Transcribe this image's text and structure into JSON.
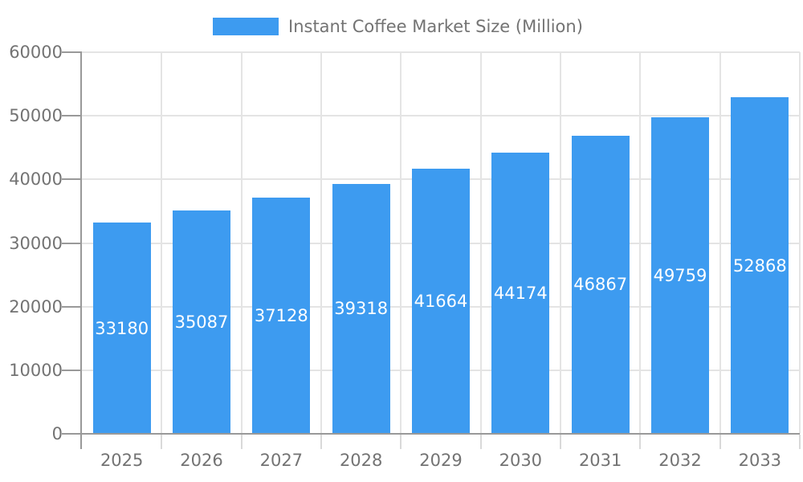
{
  "chart_data": {
    "type": "bar",
    "title": "Instant Coffee Market Size (Million)",
    "categories": [
      "2025",
      "2026",
      "2027",
      "2028",
      "2029",
      "2030",
      "2031",
      "2032",
      "2033"
    ],
    "series": [
      {
        "name": "Instant Coffee Market Size (Million)",
        "values": [
          33180,
          35087,
          37128,
          39318,
          41664,
          44174,
          46867,
          49759,
          52868
        ]
      }
    ],
    "xlabel": "",
    "ylabel": "",
    "ylim": [
      0,
      60000
    ],
    "yticks": [
      0,
      10000,
      20000,
      30000,
      40000,
      50000,
      60000
    ],
    "grid": "horizontal-and-vertical",
    "legend_position": "top-center",
    "value_labels": "inside-middle",
    "colors": {
      "bar": "#3D9BF0",
      "value_label": "#FFFFFF",
      "axis_text": "#737373",
      "axis_line": "#999999",
      "gridline": "#E4E4E4",
      "x_tick": "#D9D9D9",
      "background": "#FFFFFF"
    }
  }
}
